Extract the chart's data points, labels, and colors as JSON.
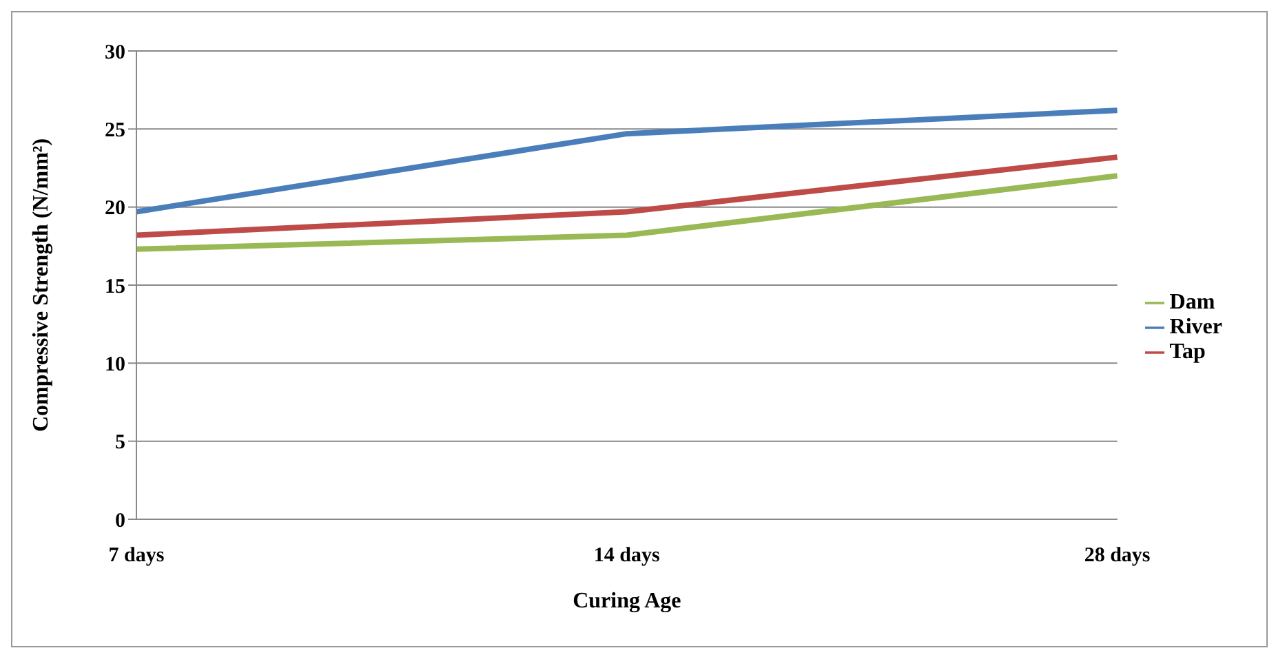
{
  "chart_data": {
    "type": "line",
    "xlabel": "Curing Age",
    "ylabel": "Compressive Strength (N/mm²)",
    "categories": [
      "7 days",
      "14 days",
      "28 days"
    ],
    "series": [
      {
        "name": "River",
        "color": "#4a7ebb",
        "values": [
          19.7,
          24.7,
          26.2
        ]
      },
      {
        "name": "Tap",
        "color": "#be4b48",
        "values": [
          18.2,
          19.7,
          23.2
        ]
      },
      {
        "name": "Dam",
        "color": "#98b954",
        "values": [
          17.3,
          18.2,
          22.0
        ]
      }
    ],
    "ylim": [
      0,
      30
    ],
    "yticks": [
      0,
      5,
      10,
      15,
      20,
      25,
      30
    ],
    "grid": "y",
    "legend": "right",
    "marker": "none",
    "line_style": "solid"
  }
}
